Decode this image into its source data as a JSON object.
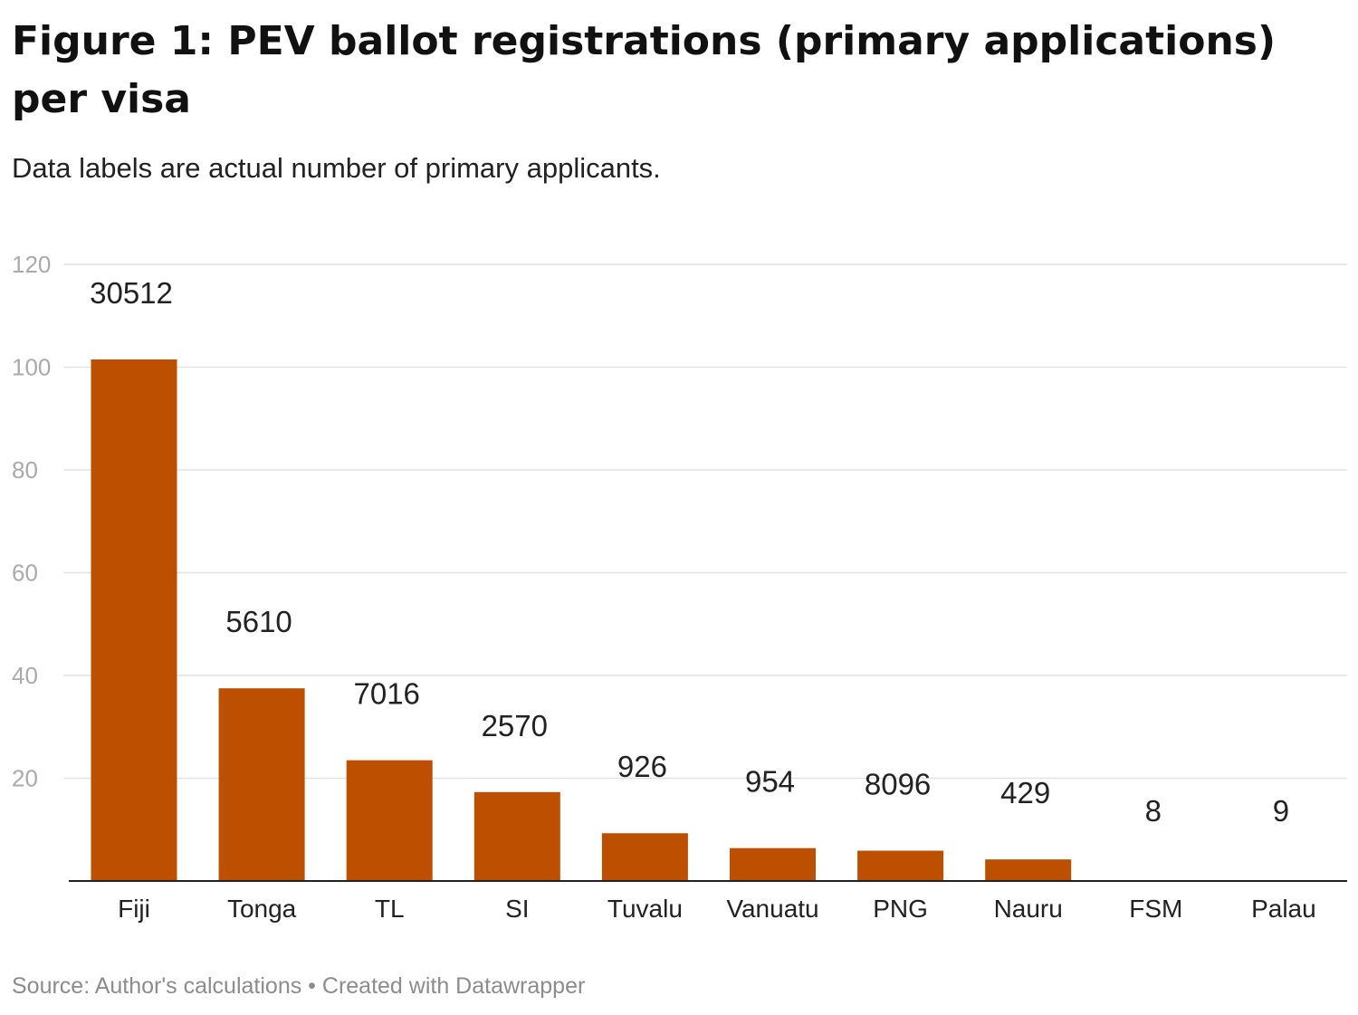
{
  "header": {
    "title": "Figure 1: PEV ballot registrations (primary applications) per visa",
    "subtitle": "Data labels are actual number of primary applicants."
  },
  "footer": {
    "source": "Source: Author's calculations",
    "separator": " • ",
    "credit": "Created with Datawrapper"
  },
  "chart_data": {
    "type": "bar",
    "title": "Figure 1: PEV ballot registrations (primary applications) per visa",
    "subtitle": "Data labels are actual number of primary applicants.",
    "xlabel": "",
    "ylabel": "",
    "categories": [
      "Fiji",
      "Tonga",
      "TL",
      "SI",
      "Tuvalu",
      "Vanuatu",
      "PNG",
      "Nauru",
      "FSM",
      "Palau"
    ],
    "values": [
      101.5,
      37.5,
      23.5,
      17.3,
      9.3,
      6.4,
      5.9,
      4.2,
      0,
      0
    ],
    "data_labels": [
      "30512",
      "5610",
      "7016",
      "2570",
      "926",
      "954",
      "8096",
      "429",
      "8",
      "9"
    ],
    "yticks": [
      20,
      40,
      60,
      80,
      100,
      120
    ],
    "ylim": [
      0,
      120
    ],
    "grid": true,
    "legend": "none",
    "bar_color": "#bd5000"
  }
}
